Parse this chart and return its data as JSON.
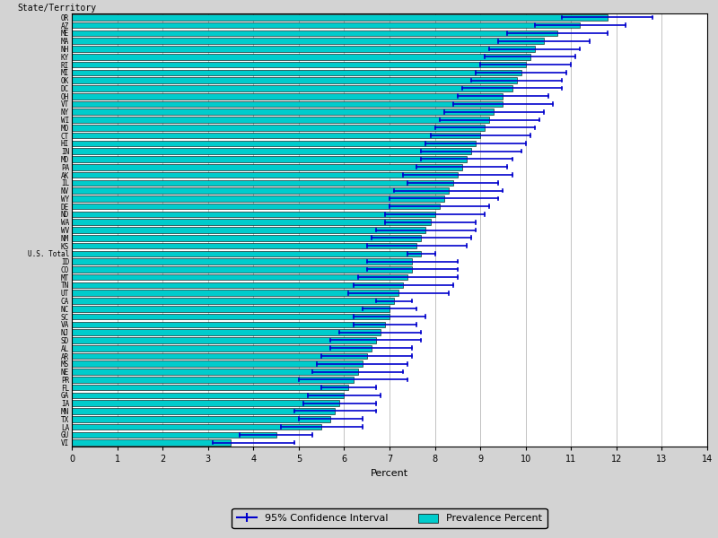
{
  "xlabel": "Percent",
  "ylabel": "State/Territory",
  "xlim": [
    0,
    14
  ],
  "xticks": [
    0,
    1,
    2,
    3,
    4,
    5,
    6,
    7,
    8,
    9,
    10,
    11,
    12,
    13,
    14
  ],
  "bar_color": "#00CCCC",
  "bar_edge_color": "#000000",
  "ci_color": "#0000CC",
  "background_color": "#D3D3D3",
  "plot_background": "#FFFFFF",
  "labels": [
    "OR",
    "AZ",
    "ME",
    "MA",
    "NH",
    "KY",
    "RI",
    "MI",
    "OK",
    "DC",
    "OH",
    "VT",
    "NY",
    "WI",
    "MO",
    "CT",
    "HI",
    "IN",
    "MD",
    "PA",
    "AK",
    "IL",
    "NV",
    "WY",
    "DE",
    "ND",
    "WA",
    "WV",
    "NM",
    "KS",
    "U.S. Total",
    "ID",
    "CO",
    "MT",
    "TN",
    "UT",
    "CA",
    "NC",
    "SC",
    "VA",
    "NJ",
    "SD",
    "AL",
    "AR",
    "MS",
    "NE",
    "PR",
    "FL",
    "GA",
    "IA",
    "MN",
    "TX",
    "LA",
    "GU",
    "VI"
  ],
  "prevalence": [
    11.8,
    11.2,
    10.7,
    10.4,
    10.2,
    10.1,
    10.0,
    9.9,
    9.8,
    9.7,
    9.5,
    9.5,
    9.3,
    9.2,
    9.1,
    9.0,
    8.9,
    8.8,
    8.7,
    8.6,
    8.5,
    8.4,
    8.3,
    8.2,
    8.1,
    8.0,
    7.9,
    7.8,
    7.7,
    7.6,
    7.7,
    7.5,
    7.5,
    7.4,
    7.3,
    7.2,
    7.1,
    7.0,
    7.0,
    6.9,
    6.8,
    6.7,
    6.6,
    6.5,
    6.4,
    6.3,
    6.2,
    6.1,
    6.0,
    5.9,
    5.8,
    5.7,
    5.5,
    4.5,
    3.5
  ],
  "ci_lower": [
    10.8,
    10.2,
    9.6,
    9.4,
    9.2,
    9.1,
    9.0,
    8.9,
    8.8,
    8.6,
    8.5,
    8.4,
    8.2,
    8.1,
    8.0,
    7.9,
    7.8,
    7.7,
    7.7,
    7.6,
    7.3,
    7.4,
    7.1,
    7.0,
    7.0,
    6.9,
    6.9,
    6.7,
    6.6,
    6.5,
    7.4,
    6.5,
    6.5,
    6.3,
    6.2,
    6.1,
    6.7,
    6.4,
    6.2,
    6.2,
    5.9,
    5.7,
    5.7,
    5.5,
    5.4,
    5.3,
    5.0,
    5.5,
    5.2,
    5.1,
    4.9,
    5.0,
    4.6,
    3.7,
    3.1
  ],
  "ci_upper": [
    12.8,
    12.2,
    11.8,
    11.4,
    11.2,
    11.1,
    11.0,
    10.9,
    10.8,
    10.8,
    10.5,
    10.6,
    10.4,
    10.3,
    10.2,
    10.1,
    10.0,
    9.9,
    9.7,
    9.6,
    9.7,
    9.4,
    9.5,
    9.4,
    9.2,
    9.1,
    8.9,
    8.9,
    8.8,
    8.7,
    8.0,
    8.5,
    8.5,
    8.5,
    8.4,
    8.3,
    7.5,
    7.6,
    7.8,
    7.6,
    7.7,
    7.7,
    7.5,
    7.5,
    7.4,
    7.3,
    7.4,
    6.7,
    6.8,
    6.7,
    6.7,
    6.4,
    6.4,
    5.3,
    4.9
  ]
}
